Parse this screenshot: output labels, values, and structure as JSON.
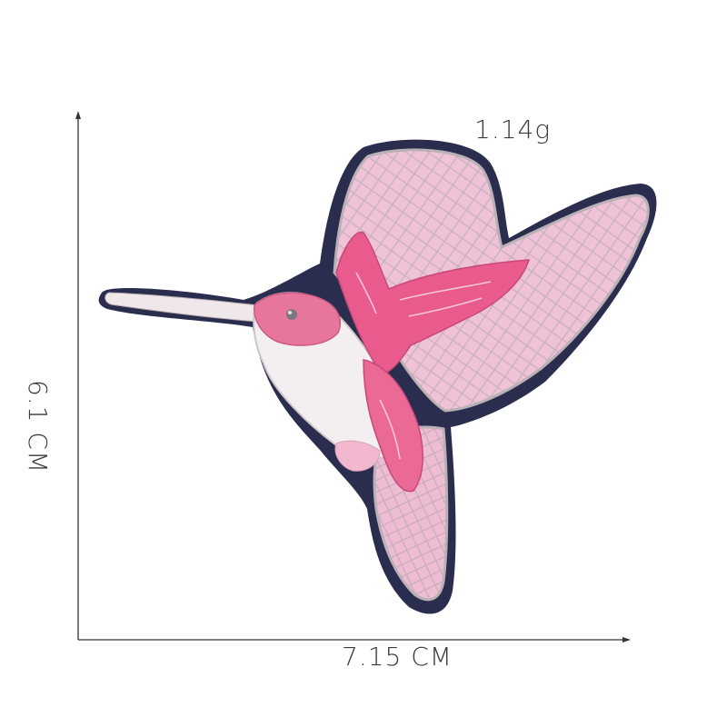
{
  "measurements": {
    "weight": "1.14g",
    "width": "7.15 CM",
    "height": "6.1 CM"
  },
  "colors": {
    "border": "#2b2d4e",
    "wing_pink": "#efc2d7",
    "accent_pink": "#e85b8c",
    "silver": "#c9c3c6",
    "axis": "#333333"
  }
}
